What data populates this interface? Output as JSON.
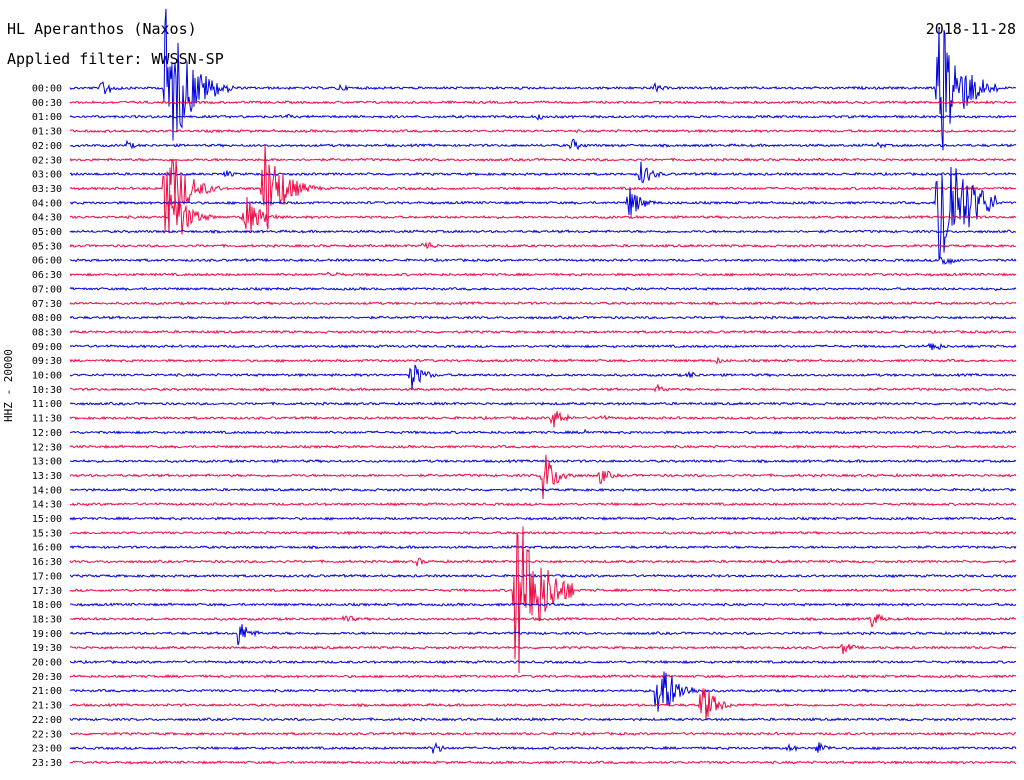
{
  "station": "HL Aperanthos (Naxos)",
  "date": "2018-11-28",
  "filter_text": "Applied filter: WWSSN-SP",
  "ylabel": "HHZ - 20000",
  "colors": {
    "blue": "#0000dd",
    "red": "#ee0a44"
  },
  "chart_data": {
    "type": "line",
    "rows": [
      "00:00",
      "00:30",
      "01:00",
      "01:30",
      "02:00",
      "02:30",
      "03:00",
      "03:30",
      "04:00",
      "04:30",
      "05:00",
      "05:30",
      "06:00",
      "06:30",
      "07:00",
      "07:30",
      "08:00",
      "08:30",
      "09:00",
      "09:30",
      "10:00",
      "10:30",
      "11:00",
      "11:30",
      "12:00",
      "12:30",
      "13:00",
      "13:30",
      "14:00",
      "14:30",
      "15:00",
      "15:30",
      "16:00",
      "16:30",
      "17:00",
      "17:30",
      "18:00",
      "18:30",
      "19:00",
      "19:30",
      "20:00",
      "20:30",
      "21:00",
      "21:30",
      "22:00",
      "22:30",
      "23:00",
      "23:30"
    ],
    "row_labels": [
      "00:00",
      "00:30",
      "01:00",
      "01:30",
      "02:00",
      "02:30",
      "03:00",
      "03:30",
      "04:00",
      "04:30",
      "05:00",
      "05:30",
      "06:00",
      "06:30",
      "07:00",
      "07:30",
      "08:00",
      "08:30",
      "09:00",
      "09:30",
      "10:00",
      "10:30",
      "11:00",
      "11:30",
      "12:00",
      "12:30",
      "13:00",
      "13:30",
      "14:00",
      "14:30",
      "15:00",
      "15:30",
      "16:00",
      "16:30",
      "17:00",
      "17:30",
      "18:00",
      "18:30",
      "19:00",
      "19:30",
      "20:00",
      "20:30",
      "21:00",
      "21:30",
      "22:00",
      "22:30",
      "23:00",
      "23:30"
    ],
    "x_range_minutes": [
      0,
      30
    ],
    "row_color_order": [
      "blue",
      "red"
    ],
    "events": [
      {
        "row": 0,
        "minute": 1.0,
        "amp": 12
      },
      {
        "row": 0,
        "minute": 3.0,
        "amp": 90
      },
      {
        "row": 0,
        "minute": 5.0,
        "amp": 5
      },
      {
        "row": 0,
        "minute": 8.5,
        "amp": 5
      },
      {
        "row": 0,
        "minute": 18.5,
        "amp": 6
      },
      {
        "row": 0,
        "minute": 27.5,
        "amp": 85
      },
      {
        "row": 2,
        "minute": 6.8,
        "amp": 4
      },
      {
        "row": 2,
        "minute": 14.8,
        "amp": 4
      },
      {
        "row": 4,
        "minute": 1.8,
        "amp": 5
      },
      {
        "row": 4,
        "minute": 15.9,
        "amp": 8
      },
      {
        "row": 4,
        "minute": 25.6,
        "amp": 4
      },
      {
        "row": 6,
        "minute": 4.9,
        "amp": 5
      },
      {
        "row": 6,
        "minute": 18.1,
        "amp": 15
      },
      {
        "row": 7,
        "minute": 3.0,
        "amp": 60
      },
      {
        "row": 7,
        "minute": 6.1,
        "amp": 60
      },
      {
        "row": 8,
        "minute": 27.5,
        "amp": 100
      },
      {
        "row": 8,
        "minute": 17.7,
        "amp": 20
      },
      {
        "row": 9,
        "minute": 3.2,
        "amp": 40
      },
      {
        "row": 9,
        "minute": 5.5,
        "amp": 30
      },
      {
        "row": 11,
        "minute": 11.2,
        "amp": 8
      },
      {
        "row": 12,
        "minute": 27.6,
        "amp": 10
      },
      {
        "row": 13,
        "minute": 8.2,
        "amp": 6
      },
      {
        "row": 18,
        "minute": 27.3,
        "amp": 8
      },
      {
        "row": 19,
        "minute": 20.5,
        "amp": 4
      },
      {
        "row": 20,
        "minute": 10.8,
        "amp": 18
      },
      {
        "row": 20,
        "minute": 19.6,
        "amp": 5
      },
      {
        "row": 21,
        "minute": 18.6,
        "amp": 6
      },
      {
        "row": 23,
        "minute": 15.3,
        "amp": 13
      },
      {
        "row": 23,
        "minute": 16.8,
        "amp": 5
      },
      {
        "row": 24,
        "minute": 16.3,
        "amp": 4
      },
      {
        "row": 27,
        "minute": 15.0,
        "amp": 28
      },
      {
        "row": 27,
        "minute": 16.8,
        "amp": 10
      },
      {
        "row": 33,
        "minute": 11.0,
        "amp": 5
      },
      {
        "row": 35,
        "minute": 14.1,
        "amp": 100
      },
      {
        "row": 38,
        "minute": 5.3,
        "amp": 16
      },
      {
        "row": 37,
        "minute": 8.7,
        "amp": 6
      },
      {
        "row": 37,
        "minute": 25.4,
        "amp": 10
      },
      {
        "row": 39,
        "minute": 24.5,
        "amp": 8
      },
      {
        "row": 42,
        "minute": 18.6,
        "amp": 45
      },
      {
        "row": 43,
        "minute": 20.0,
        "amp": 28
      },
      {
        "row": 46,
        "minute": 11.5,
        "amp": 8
      },
      {
        "row": 46,
        "minute": 22.8,
        "amp": 5
      },
      {
        "row": 46,
        "minute": 23.7,
        "amp": 8
      }
    ]
  }
}
